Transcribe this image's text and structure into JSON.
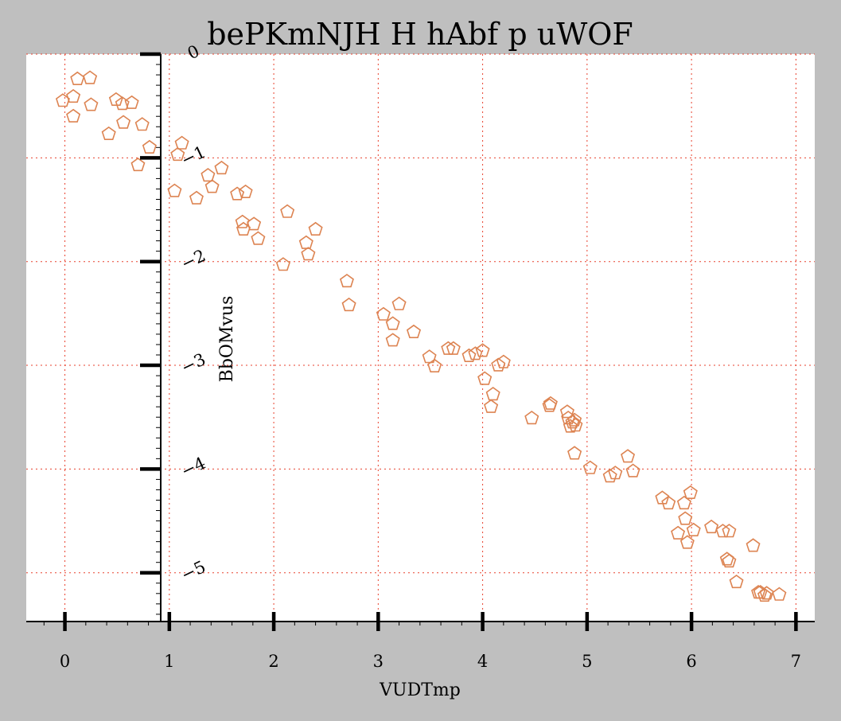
{
  "colors": {
    "background": "#bfbfbf",
    "plot_area": "#ffffff",
    "grid": "#e8412d",
    "marker": "#dd8452",
    "axis": "#000000"
  },
  "chart_data": {
    "type": "scatter",
    "title": "bePKmNJH H hAbf  p uWOF",
    "xlabel": "VUDTmp",
    "ylabel": "BbOMvus",
    "xlim": [
      -0.37,
      7.18
    ],
    "ylim": [
      -5.47,
      0.0
    ],
    "xticks": [
      0,
      1,
      2,
      3,
      4,
      5,
      6,
      7
    ],
    "xtick_labels": [
      "0",
      "1",
      "2",
      "3",
      "4",
      "5",
      "6",
      "7"
    ],
    "yticks": [
      0,
      -1,
      -2,
      -3,
      -4,
      -5
    ],
    "ytick_labels": [
      "0",
      "−1",
      "−2",
      "−3",
      "−4",
      "−5"
    ],
    "marker": "pentagon",
    "grid": true,
    "points": [
      {
        "x": -0.02,
        "y": -0.45
      },
      {
        "x": 0.08,
        "y": -0.41
      },
      {
        "x": 0.12,
        "y": -0.24
      },
      {
        "x": 0.24,
        "y": -0.23
      },
      {
        "x": 0.25,
        "y": -0.49
      },
      {
        "x": 0.08,
        "y": -0.6
      },
      {
        "x": 0.49,
        "y": -0.44
      },
      {
        "x": 0.55,
        "y": -0.48
      },
      {
        "x": 0.64,
        "y": -0.47
      },
      {
        "x": 0.56,
        "y": -0.66
      },
      {
        "x": 0.42,
        "y": -0.77
      },
      {
        "x": 0.74,
        "y": -0.68
      },
      {
        "x": 0.81,
        "y": -0.9
      },
      {
        "x": 0.7,
        "y": -1.07
      },
      {
        "x": 1.12,
        "y": -0.86
      },
      {
        "x": 1.08,
        "y": -0.97
      },
      {
        "x": 1.05,
        "y": -1.32
      },
      {
        "x": 1.26,
        "y": -1.39
      },
      {
        "x": 1.37,
        "y": -1.17
      },
      {
        "x": 1.41,
        "y": -1.28
      },
      {
        "x": 1.5,
        "y": -1.1
      },
      {
        "x": 1.65,
        "y": -1.35
      },
      {
        "x": 1.73,
        "y": -1.33
      },
      {
        "x": 1.7,
        "y": -1.62
      },
      {
        "x": 1.71,
        "y": -1.69
      },
      {
        "x": 1.81,
        "y": -1.64
      },
      {
        "x": 1.85,
        "y": -1.78
      },
      {
        "x": 2.13,
        "y": -1.52
      },
      {
        "x": 2.09,
        "y": -2.03
      },
      {
        "x": 2.31,
        "y": -1.82
      },
      {
        "x": 2.33,
        "y": -1.93
      },
      {
        "x": 2.4,
        "y": -1.69
      },
      {
        "x": 2.7,
        "y": -2.19
      },
      {
        "x": 2.72,
        "y": -2.42
      },
      {
        "x": 3.05,
        "y": -2.51
      },
      {
        "x": 3.14,
        "y": -2.6
      },
      {
        "x": 3.2,
        "y": -2.41
      },
      {
        "x": 3.14,
        "y": -2.76
      },
      {
        "x": 3.34,
        "y": -2.68
      },
      {
        "x": 3.49,
        "y": -2.92
      },
      {
        "x": 3.54,
        "y": -3.01
      },
      {
        "x": 3.67,
        "y": -2.84
      },
      {
        "x": 3.72,
        "y": -2.84
      },
      {
        "x": 3.87,
        "y": -2.91
      },
      {
        "x": 3.93,
        "y": -2.89
      },
      {
        "x": 4.0,
        "y": -2.86
      },
      {
        "x": 4.15,
        "y": -3.0
      },
      {
        "x": 4.2,
        "y": -2.97
      },
      {
        "x": 4.02,
        "y": -3.13
      },
      {
        "x": 4.1,
        "y": -3.28
      },
      {
        "x": 4.08,
        "y": -3.4
      },
      {
        "x": 4.47,
        "y": -3.51
      },
      {
        "x": 4.64,
        "y": -3.39
      },
      {
        "x": 4.65,
        "y": -3.37
      },
      {
        "x": 4.81,
        "y": -3.45
      },
      {
        "x": 4.82,
        "y": -3.51
      },
      {
        "x": 4.86,
        "y": -3.55
      },
      {
        "x": 4.89,
        "y": -3.58
      },
      {
        "x": 4.84,
        "y": -3.59
      },
      {
        "x": 4.88,
        "y": -3.53
      },
      {
        "x": 4.88,
        "y": -3.85
      },
      {
        "x": 5.03,
        "y": -3.99
      },
      {
        "x": 5.22,
        "y": -4.07
      },
      {
        "x": 5.27,
        "y": -4.04
      },
      {
        "x": 5.39,
        "y": -3.88
      },
      {
        "x": 5.44,
        "y": -4.02
      },
      {
        "x": 5.72,
        "y": -4.28
      },
      {
        "x": 5.78,
        "y": -4.33
      },
      {
        "x": 5.93,
        "y": -4.33
      },
      {
        "x": 5.99,
        "y": -4.23
      },
      {
        "x": 5.94,
        "y": -4.48
      },
      {
        "x": 5.87,
        "y": -4.62
      },
      {
        "x": 5.96,
        "y": -4.71
      },
      {
        "x": 6.02,
        "y": -4.59
      },
      {
        "x": 6.19,
        "y": -4.56
      },
      {
        "x": 6.3,
        "y": -4.6
      },
      {
        "x": 6.36,
        "y": -4.6
      },
      {
        "x": 6.34,
        "y": -4.87
      },
      {
        "x": 6.36,
        "y": -4.89
      },
      {
        "x": 6.43,
        "y": -5.09
      },
      {
        "x": 6.59,
        "y": -4.74
      },
      {
        "x": 6.64,
        "y": -5.19
      },
      {
        "x": 6.66,
        "y": -5.19
      },
      {
        "x": 6.7,
        "y": -5.22
      },
      {
        "x": 6.72,
        "y": -5.2
      },
      {
        "x": 6.84,
        "y": -5.21
      }
    ]
  }
}
